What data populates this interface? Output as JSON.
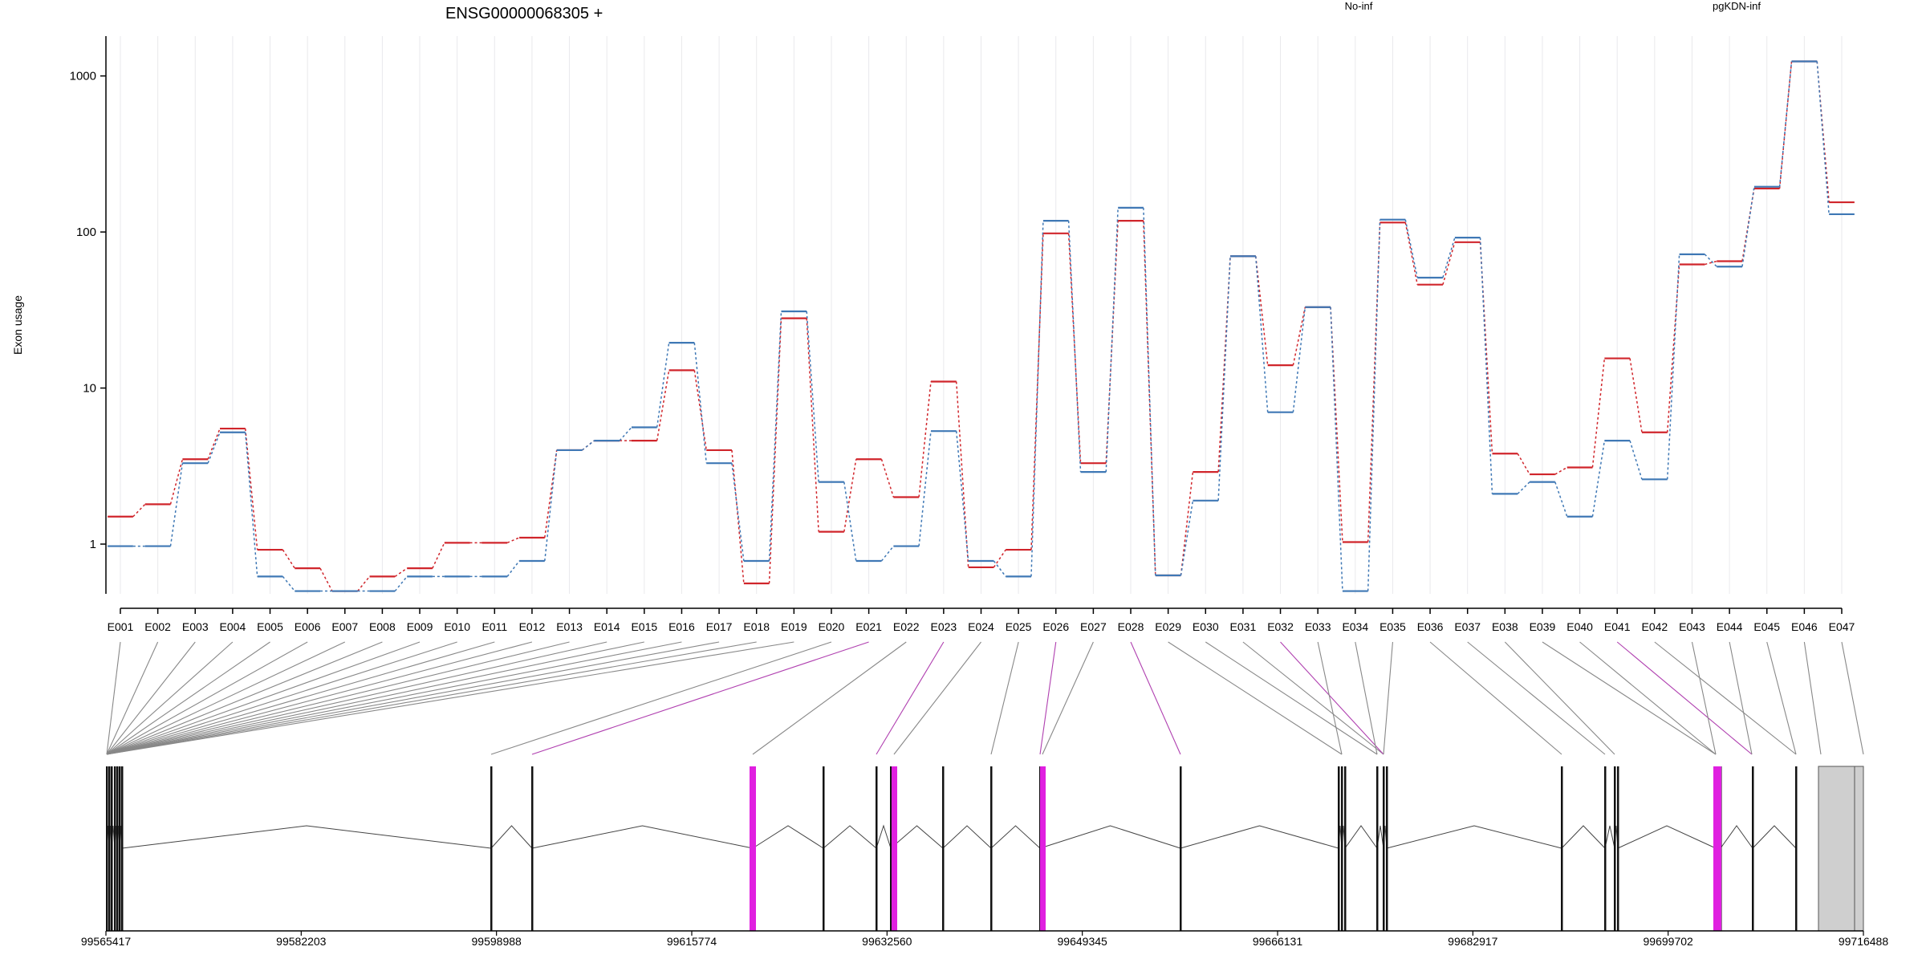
{
  "chart_data": {
    "type": "line",
    "title": "ENSG00000068305 +",
    "ylabel": "Exon usage",
    "xlabel": "",
    "yscale": "log",
    "ylim": [
      0.48,
      1800
    ],
    "yticks": [
      1,
      10,
      100,
      1000
    ],
    "ytick_labels": [
      "1",
      "10",
      "100",
      "1000"
    ],
    "grid": "vertical",
    "categories": [
      "E001",
      "E002",
      "E003",
      "E004",
      "E005",
      "E006",
      "E007",
      "E008",
      "E009",
      "E010",
      "E011",
      "E012",
      "E013",
      "E014",
      "E015",
      "E016",
      "E017",
      "E018",
      "E019",
      "E020",
      "E021",
      "E022",
      "E023",
      "E024",
      "E025",
      "E026",
      "E027",
      "E028",
      "E029",
      "E030",
      "E031",
      "E032",
      "E033",
      "E034",
      "E035",
      "E036",
      "E037",
      "E038",
      "E039",
      "E040",
      "E041",
      "E042",
      "E043",
      "E044",
      "E045",
      "E046",
      "E047"
    ],
    "series": [
      {
        "name": "No-inf",
        "color": "#d0252b",
        "values": [
          1.5,
          1.8,
          3.5,
          5.5,
          0.92,
          0.7,
          0.5,
          0.62,
          0.7,
          1.02,
          1.02,
          1.1,
          4.0,
          4.6,
          4.6,
          13.0,
          4.0,
          0.56,
          28.0,
          1.2,
          3.5,
          2.0,
          11.0,
          0.71,
          0.92,
          98.0,
          3.3,
          118.0,
          0.63,
          2.9,
          70.0,
          14.0,
          33.0,
          1.03,
          115.0,
          46.0,
          86.0,
          3.8,
          2.8,
          3.1,
          15.5,
          5.2,
          62.0,
          65.0,
          190.0,
          1240.0,
          155.0
        ]
      },
      {
        "name": "pgKDN-inf",
        "color": "#3f78b5",
        "values": [
          0.97,
          0.97,
          3.3,
          5.2,
          0.62,
          0.5,
          0.5,
          0.5,
          0.62,
          0.62,
          0.62,
          0.78,
          4.0,
          4.6,
          5.6,
          19.5,
          3.3,
          0.78,
          31.0,
          2.5,
          0.78,
          0.97,
          5.3,
          0.78,
          0.62,
          118.0,
          2.9,
          143.0,
          0.63,
          1.9,
          70.0,
          7.0,
          33.0,
          0.5,
          120.0,
          51.0,
          92.0,
          2.1,
          2.5,
          1.5,
          4.6,
          2.6,
          72.0,
          60.0,
          195.0,
          1240.0,
          130.0
        ]
      }
    ],
    "gene_model": {
      "coordinate_labels": [
        "99565417",
        "99582203",
        "99598988",
        "99615774",
        "99632560",
        "99649345",
        "99666131",
        "99682917",
        "99699702",
        "99716488"
      ],
      "highlight_color": "#e020e0",
      "exon_color": "#111111"
    }
  }
}
